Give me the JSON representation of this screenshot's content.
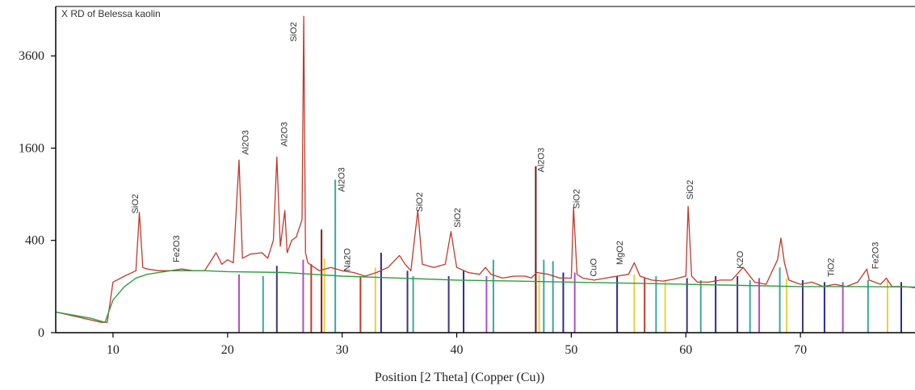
{
  "chart_data": {
    "type": "line",
    "title": "X RD of Belessa kaolin",
    "xlabel": "Position [2 Theta] (Copper (Cu))",
    "ylabel": "",
    "xlim": [
      5,
      80
    ],
    "y_scale": "sqrt",
    "ylim": [
      0,
      5000
    ],
    "x_ticks": [
      10,
      20,
      30,
      40,
      50,
      60,
      70
    ],
    "y_ticks": [
      0,
      400,
      1600,
      3600
    ],
    "grid": false,
    "colors": {
      "pattern": "#c0392b",
      "background": "#2e9e3e",
      "axis": "#000000"
    },
    "series": [
      {
        "role": "pattern",
        "x": [
          5,
          9,
          9.5,
          10,
          11,
          12,
          12.3,
          12.6,
          13,
          14,
          15,
          16,
          17,
          18,
          19,
          19.5,
          20,
          20.5,
          21,
          21.3,
          22,
          23,
          23.5,
          24,
          24.3,
          24.6,
          25,
          25.2,
          25.6,
          26,
          26.5,
          26.65,
          26.8,
          27,
          28,
          29,
          30,
          31,
          32,
          33,
          34,
          35,
          35.5,
          36,
          36.6,
          37,
          38,
          39,
          39.5,
          40,
          41,
          42,
          42.5,
          43,
          44,
          45,
          46,
          46.5,
          47,
          48,
          49,
          50,
          50.2,
          50.5,
          51,
          52,
          53,
          54,
          55,
          55.5,
          56,
          57,
          58,
          59,
          60,
          60.2,
          60.5,
          61,
          62,
          63,
          64,
          65,
          66,
          67,
          68,
          68.3,
          68.6,
          69,
          70,
          71,
          72,
          73,
          74,
          75,
          75.8,
          76,
          77,
          77.5,
          78,
          79,
          80
        ],
        "y": [
          20,
          5,
          5,
          120,
          150,
          180,
          680,
          200,
          190,
          180,
          180,
          190,
          180,
          180,
          300,
          220,
          250,
          230,
          1400,
          260,
          290,
          300,
          260,
          400,
          1450,
          350,
          700,
          300,
          400,
          430,
          600,
          4700,
          300,
          230,
          180,
          200,
          180,
          170,
          150,
          170,
          200,
          280,
          220,
          180,
          700,
          220,
          200,
          220,
          480,
          200,
          170,
          160,
          200,
          160,
          140,
          150,
          150,
          140,
          170,
          160,
          140,
          140,
          740,
          160,
          140,
          130,
          140,
          150,
          160,
          230,
          150,
          130,
          125,
          135,
          150,
          750,
          150,
          120,
          120,
          130,
          130,
          200,
          120,
          110,
          250,
          420,
          230,
          130,
          110,
          120,
          100,
          110,
          100,
          120,
          190,
          130,
          110,
          140,
          100,
          100,
          95
        ]
      },
      {
        "role": "background",
        "x": [
          5,
          8,
          9.3,
          10,
          11,
          12,
          13,
          15,
          18,
          20,
          25,
          30,
          35,
          40,
          45,
          50,
          55,
          60,
          65,
          70,
          75,
          80
        ],
        "y": [
          20,
          10,
          5,
          50,
          100,
          140,
          160,
          180,
          180,
          175,
          170,
          150,
          140,
          130,
          125,
          120,
          115,
          110,
          105,
          100,
          100,
          98
        ]
      }
    ],
    "reference_lines": [
      {
        "x": 21.0,
        "height": 160,
        "color": "#b04ec8"
      },
      {
        "x": 23.1,
        "height": 150,
        "color": "#3aa8a0"
      },
      {
        "x": 24.3,
        "height": 210,
        "color": "#3b3680"
      },
      {
        "x": 26.6,
        "height": 250,
        "color": "#b04ec8"
      },
      {
        "x": 27.3,
        "height": 220,
        "color": "#c0392b"
      },
      {
        "x": 28.2,
        "height": 500,
        "color": "#8b1a1a"
      },
      {
        "x": 28.45,
        "height": 260,
        "color": "#e8d23a"
      },
      {
        "x": 29.4,
        "height": 1100,
        "color": "#3aa8a0"
      },
      {
        "x": 31.6,
        "height": 150,
        "color": "#c0392b"
      },
      {
        "x": 32.9,
        "height": 200,
        "color": "#e8d23a"
      },
      {
        "x": 33.4,
        "height": 300,
        "color": "#2a2a9a"
      },
      {
        "x": 35.7,
        "height": 180,
        "color": "#3b3680"
      },
      {
        "x": 36.2,
        "height": 150,
        "color": "#3aa8a0"
      },
      {
        "x": 39.3,
        "height": 150,
        "color": "#3b3680"
      },
      {
        "x": 40.6,
        "height": 180,
        "color": "#2a2a9a"
      },
      {
        "x": 42.6,
        "height": 150,
        "color": "#b04ec8"
      },
      {
        "x": 43.2,
        "height": 250,
        "color": "#3aa8a0"
      },
      {
        "x": 46.9,
        "height": 1300,
        "color": "#6b1a1a"
      },
      {
        "x": 47.2,
        "height": 160,
        "color": "#e8d23a"
      },
      {
        "x": 47.6,
        "height": 250,
        "color": "#3aa8a0"
      },
      {
        "x": 48.4,
        "height": 240,
        "color": "#3aa8a0"
      },
      {
        "x": 49.3,
        "height": 170,
        "color": "#2a2a9a"
      },
      {
        "x": 50.3,
        "height": 170,
        "color": "#b04ec8"
      },
      {
        "x": 54.0,
        "height": 150,
        "color": "#2a2a9a"
      },
      {
        "x": 55.5,
        "height": 160,
        "color": "#e8d23a"
      },
      {
        "x": 56.4,
        "height": 140,
        "color": "#c0392b"
      },
      {
        "x": 57.4,
        "height": 150,
        "color": "#3aa8a0"
      },
      {
        "x": 58.2,
        "height": 130,
        "color": "#e8d23a"
      },
      {
        "x": 60.1,
        "height": 140,
        "color": "#3b3680"
      },
      {
        "x": 61.3,
        "height": 130,
        "color": "#3aa8a0"
      },
      {
        "x": 62.6,
        "height": 150,
        "color": "#2a2a9a"
      },
      {
        "x": 64.5,
        "height": 150,
        "color": "#3b3680"
      },
      {
        "x": 65.6,
        "height": 130,
        "color": "#3aa8a0"
      },
      {
        "x": 66.4,
        "height": 140,
        "color": "#b04ec8"
      },
      {
        "x": 68.2,
        "height": 200,
        "color": "#3aa8a0"
      },
      {
        "x": 68.8,
        "height": 140,
        "color": "#e8d23a"
      },
      {
        "x": 70.2,
        "height": 130,
        "color": "#3b3680"
      },
      {
        "x": 72.1,
        "height": 120,
        "color": "#2a2a9a"
      },
      {
        "x": 73.7,
        "height": 120,
        "color": "#b04ec8"
      },
      {
        "x": 75.9,
        "height": 130,
        "color": "#3aa8a0"
      },
      {
        "x": 77.6,
        "height": 130,
        "color": "#e8d23a"
      },
      {
        "x": 78.8,
        "height": 120,
        "color": "#2a2a9a"
      }
    ],
    "annotations": [
      {
        "text": "SiO2",
        "x": 12.2,
        "y": 780
      },
      {
        "text": "Fe2O3",
        "x": 15.8,
        "y": 330
      },
      {
        "text": "Al2O3",
        "x": 21.8,
        "y": 1700
      },
      {
        "text": "Al2O3",
        "x": 25.2,
        "y": 1850
      },
      {
        "text": "SiO2",
        "x": 26.0,
        "y": 4250
      },
      {
        "text": "Al2O3",
        "x": 30.2,
        "y": 1100
      },
      {
        "text": "Na2O",
        "x": 30.7,
        "y": 250
      },
      {
        "text": "SiO2",
        "x": 37.0,
        "y": 800
      },
      {
        "text": "SiO2",
        "x": 40.3,
        "y": 620
      },
      {
        "text": "Al2O3",
        "x": 47.6,
        "y": 1400
      },
      {
        "text": "SiO2",
        "x": 50.7,
        "y": 840
      },
      {
        "text": "CuO",
        "x": 52.2,
        "y": 200
      },
      {
        "text": "MgO2",
        "x": 54.5,
        "y": 300
      },
      {
        "text": "SiO2",
        "x": 60.6,
        "y": 960
      },
      {
        "text": "K2O",
        "x": 65.0,
        "y": 250
      },
      {
        "text": "TiO2",
        "x": 72.9,
        "y": 200
      },
      {
        "text": "Fe2O3",
        "x": 76.8,
        "y": 280
      }
    ]
  }
}
